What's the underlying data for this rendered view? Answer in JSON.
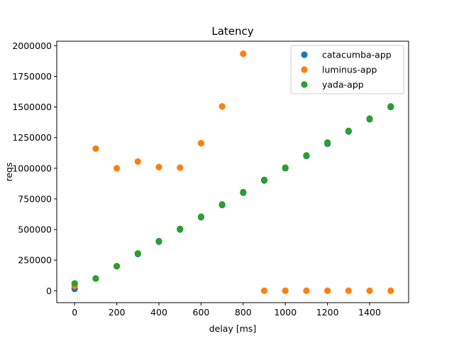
{
  "chart_data": {
    "type": "scatter",
    "title": "Latency",
    "xlabel": "delay [ms]",
    "ylabel": "reqs",
    "xlim": [
      -85,
      1585
    ],
    "ylim": [
      -97000,
      2037000
    ],
    "xticks": [
      0,
      200,
      400,
      600,
      800,
      1000,
      1200,
      1400
    ],
    "yticks": [
      0,
      250000,
      500000,
      750000,
      1000000,
      1250000,
      1500000,
      1750000,
      2000000
    ],
    "grid": false,
    "legend": "top-right",
    "series": [
      {
        "name": "catacumba-app",
        "color": "#1f77b4",
        "points": [
          [
            0,
            15000
          ],
          [
            100,
            100000
          ],
          [
            200,
            200000
          ],
          [
            300,
            300000
          ],
          [
            400,
            400000
          ],
          [
            500,
            500000
          ],
          [
            600,
            600000
          ],
          [
            700,
            700000
          ],
          [
            800,
            800000
          ],
          [
            900,
            900000
          ],
          [
            1000,
            1000000
          ],
          [
            1100,
            1100000
          ],
          [
            1200,
            1200000
          ],
          [
            1300,
            1300000
          ],
          [
            1400,
            1400000
          ],
          [
            1500,
            1500000
          ]
        ]
      },
      {
        "name": "luminus-app",
        "color": "#ff7f0e",
        "points": [
          [
            0,
            40000
          ],
          [
            100,
            1160000
          ],
          [
            200,
            1000000
          ],
          [
            300,
            1055000
          ],
          [
            400,
            1010000
          ],
          [
            500,
            1005000
          ],
          [
            600,
            1205000
          ],
          [
            700,
            1505000
          ],
          [
            800,
            1935000
          ],
          [
            900,
            0
          ],
          [
            1000,
            0
          ],
          [
            1100,
            0
          ],
          [
            1200,
            0
          ],
          [
            1300,
            0
          ],
          [
            1400,
            0
          ],
          [
            1500,
            0
          ]
        ]
      },
      {
        "name": "yada-app",
        "color": "#2ca02c",
        "points": [
          [
            0,
            60000
          ],
          [
            100,
            100000
          ],
          [
            200,
            200000
          ],
          [
            300,
            305000
          ],
          [
            400,
            405000
          ],
          [
            500,
            505000
          ],
          [
            600,
            605000
          ],
          [
            700,
            705000
          ],
          [
            800,
            805000
          ],
          [
            900,
            905000
          ],
          [
            1000,
            1005000
          ],
          [
            1100,
            1105000
          ],
          [
            1200,
            1210000
          ],
          [
            1300,
            1305000
          ],
          [
            1400,
            1405000
          ],
          [
            1500,
            1505000
          ]
        ]
      }
    ]
  }
}
